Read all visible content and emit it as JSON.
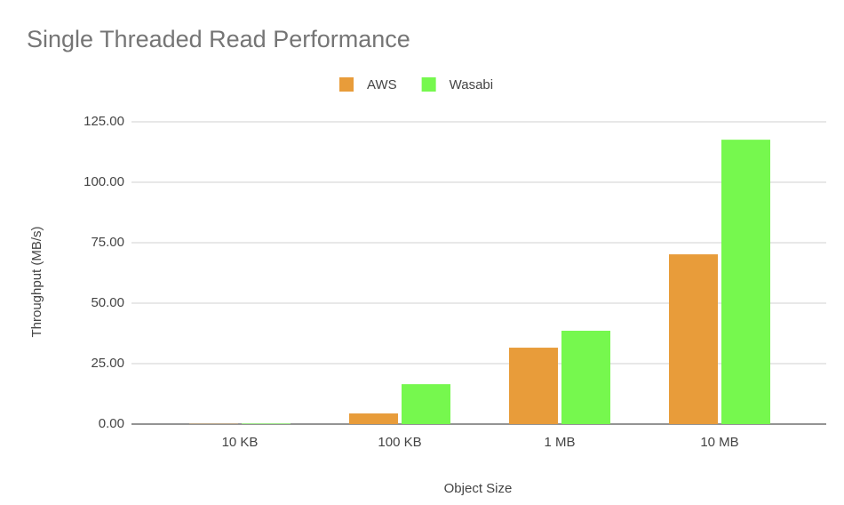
{
  "chart_data": {
    "type": "bar",
    "title": "Single Threaded Read Performance",
    "x_label": "Object Size",
    "y_label": "Throughput (MB/s)",
    "categories": [
      "10 KB",
      "100 KB",
      "1 MB",
      "10 MB"
    ],
    "series": [
      {
        "name": "AWS",
        "color": "#e89c3a",
        "values": [
          0.1,
          4.4,
          31.6,
          70.2
        ]
      },
      {
        "name": "Wasabi",
        "color": "#76f84e",
        "values": [
          0.2,
          16.5,
          38.6,
          117.6
        ]
      }
    ],
    "ylim": [
      0,
      125
    ],
    "yticks": [
      {
        "value": 0,
        "label": "0.00"
      },
      {
        "value": 25,
        "label": "25.00"
      },
      {
        "value": 50,
        "label": "50.00"
      },
      {
        "value": 75,
        "label": "75.00"
      },
      {
        "value": 100,
        "label": "100.00"
      },
      {
        "value": 125,
        "label": "125.00"
      }
    ],
    "grid": true,
    "legend": "top"
  }
}
